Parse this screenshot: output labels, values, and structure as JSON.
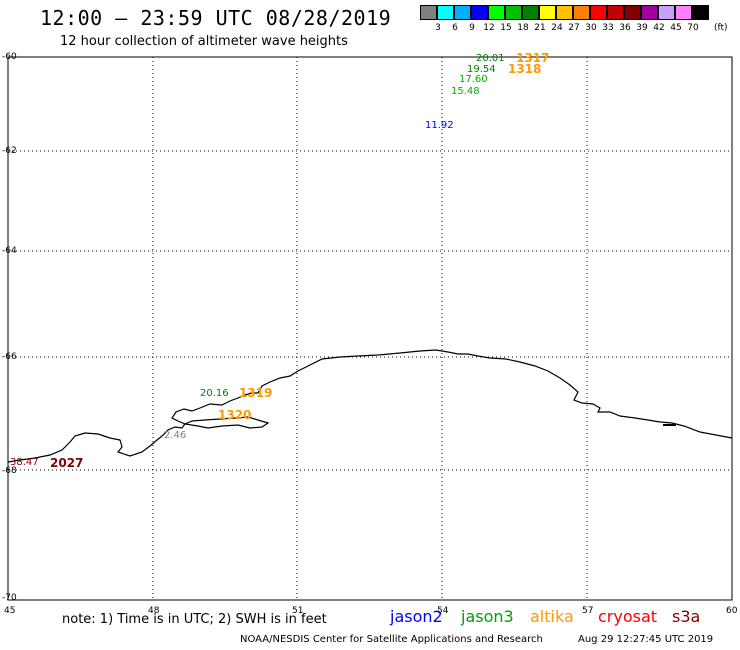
{
  "header": {
    "title": "12:00 – 23:59 UTC 08/28/2019",
    "subtitle": "12 hour collection of altimeter wave heights"
  },
  "legend": {
    "unit": "(ft)",
    "bins": [
      {
        "label": "3",
        "color": "#808080"
      },
      {
        "label": "6",
        "color": "#00ffff"
      },
      {
        "label": "9",
        "color": "#00b0ff"
      },
      {
        "label": "12",
        "color": "#0000ff"
      },
      {
        "label": "15",
        "color": "#00ff00"
      },
      {
        "label": "18",
        "color": "#00c000"
      },
      {
        "label": "21",
        "color": "#008000"
      },
      {
        "label": "24",
        "color": "#ffff00"
      },
      {
        "label": "27",
        "color": "#ffc000"
      },
      {
        "label": "30",
        "color": "#ff8000"
      },
      {
        "label": "33",
        "color": "#ff0000"
      },
      {
        "label": "36",
        "color": "#c00000"
      },
      {
        "label": "39",
        "color": "#800000"
      },
      {
        "label": "42",
        "color": "#a000a0"
      },
      {
        "label": "45",
        "color": "#c8a0ff"
      },
      {
        "label": "70",
        "color": "#ff80ff"
      },
      {
        "label": "",
        "color": "#000000"
      }
    ]
  },
  "axes": {
    "lon_labels": [
      "45",
      "48",
      "51",
      "54",
      "57",
      "60"
    ],
    "lat_labels": [
      "-60",
      "-62",
      "-64",
      "-66",
      "-68",
      "-70"
    ]
  },
  "observations": [
    {
      "text": "20.01",
      "color": "#008000",
      "kind": "value"
    },
    {
      "text": "1317",
      "color": "#ff9900",
      "kind": "pass"
    },
    {
      "text": "19.54",
      "color": "#008000",
      "kind": "value"
    },
    {
      "text": "1318",
      "color": "#ff9900",
      "kind": "pass"
    },
    {
      "text": "17.60",
      "color": "#00b000",
      "kind": "value"
    },
    {
      "text": "15.48",
      "color": "#00b000",
      "kind": "value"
    },
    {
      "text": "11.92",
      "color": "#0000ff",
      "kind": "value"
    },
    {
      "text": "20.16",
      "color": "#008000",
      "kind": "value"
    },
    {
      "text": "1319",
      "color": "#ff9900",
      "kind": "pass"
    },
    {
      "text": "1320",
      "color": "#ff9900",
      "kind": "pass"
    },
    {
      "text": "2.46",
      "color": "#808080",
      "kind": "value"
    },
    {
      "text": "38.47",
      "color": "#800000",
      "kind": "value"
    },
    {
      "text": "2027",
      "color": "#800000",
      "kind": "pass"
    }
  ],
  "footer": {
    "note": "note: 1) Time is in UTC; 2) SWH is in feet",
    "satellites": [
      {
        "name": "jason2",
        "color": "#0000ff"
      },
      {
        "name": "jason3",
        "color": "#00a000"
      },
      {
        "name": "altika",
        "color": "#ff9900"
      },
      {
        "name": "cryosat",
        "color": "#ff0000"
      },
      {
        "name": "s3a",
        "color": "#800000"
      }
    ],
    "credit": "NOAA/NESDIS Center for Satellite Applications and Research",
    "timestamp": "Aug 29 12:27:45 UTC 2019"
  }
}
